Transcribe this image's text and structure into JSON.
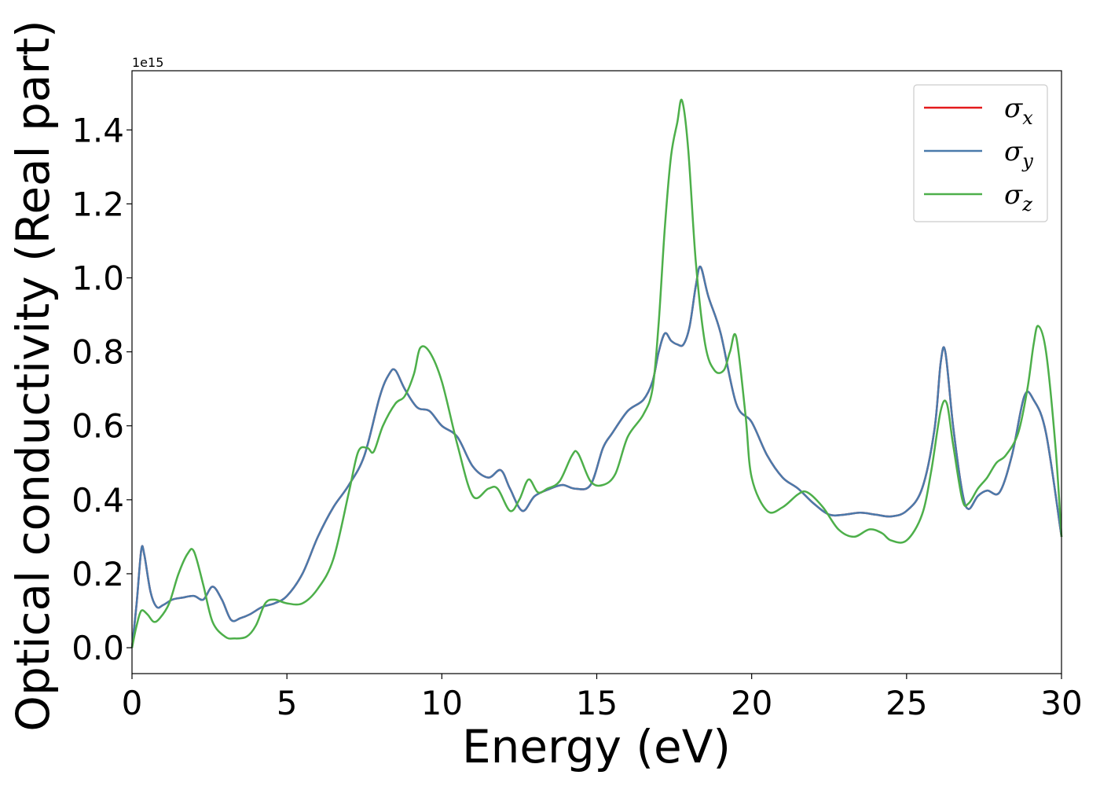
{
  "chart_data": {
    "type": "line",
    "title": "",
    "xlabel": "Energy (eV)",
    "ylabel": "Optical conductivity (Real part)",
    "y_offset_label": "1e15",
    "xlim": [
      0,
      30
    ],
    "ylim": [
      -0.07,
      1.56
    ],
    "x_ticks": [
      0,
      5,
      10,
      15,
      20,
      25,
      30
    ],
    "x_tick_labels": [
      "0",
      "5",
      "10",
      "15",
      "20",
      "25",
      "30"
    ],
    "y_ticks": [
      0.0,
      0.2,
      0.4,
      0.6,
      0.8,
      1.0,
      1.2,
      1.4
    ],
    "y_tick_labels": [
      "0.0",
      "0.2",
      "0.4",
      "0.6",
      "0.8",
      "1.0",
      "1.2",
      "1.4"
    ],
    "grid": false,
    "legend_position": "top-right",
    "series": [
      {
        "name": "σ",
        "subscript": "x",
        "color": "#e41a1c",
        "x": [
          0,
          0.15,
          0.3,
          0.4,
          0.6,
          0.8,
          1.0,
          1.3,
          1.6,
          2.0,
          2.3,
          2.6,
          2.9,
          3.2,
          3.5,
          3.8,
          4.2,
          4.6,
          5.0,
          5.5,
          6.0,
          6.5,
          7.0,
          7.5,
          8.0,
          8.3,
          8.5,
          8.8,
          9.2,
          9.6,
          10.0,
          10.5,
          11.0,
          11.5,
          11.9,
          12.2,
          12.6,
          13.0,
          13.5,
          13.9,
          14.3,
          14.8,
          15.2,
          15.5,
          16.0,
          16.5,
          16.8,
          17.0,
          17.2,
          17.4,
          17.6,
          17.8,
          18.0,
          18.2,
          18.35,
          18.6,
          19.0,
          19.5,
          20.0,
          20.5,
          21.0,
          21.5,
          22.0,
          22.5,
          23.0,
          23.5,
          24.0,
          24.5,
          25.0,
          25.5,
          25.9,
          26.1,
          26.25,
          26.5,
          26.8,
          27.0,
          27.3,
          27.6,
          28.0,
          28.4,
          28.8,
          29.1,
          29.5,
          30.0
        ],
        "values": [
          0.0,
          0.12,
          0.265,
          0.25,
          0.15,
          0.11,
          0.115,
          0.13,
          0.135,
          0.14,
          0.13,
          0.165,
          0.13,
          0.075,
          0.08,
          0.09,
          0.11,
          0.12,
          0.14,
          0.2,
          0.3,
          0.38,
          0.44,
          0.52,
          0.68,
          0.74,
          0.75,
          0.7,
          0.65,
          0.64,
          0.6,
          0.57,
          0.49,
          0.46,
          0.48,
          0.43,
          0.37,
          0.41,
          0.43,
          0.44,
          0.43,
          0.44,
          0.54,
          0.58,
          0.64,
          0.67,
          0.72,
          0.8,
          0.85,
          0.83,
          0.82,
          0.82,
          0.87,
          0.98,
          1.03,
          0.95,
          0.85,
          0.66,
          0.61,
          0.52,
          0.46,
          0.43,
          0.39,
          0.36,
          0.36,
          0.365,
          0.36,
          0.355,
          0.37,
          0.43,
          0.59,
          0.77,
          0.8,
          0.6,
          0.42,
          0.375,
          0.41,
          0.425,
          0.42,
          0.52,
          0.68,
          0.67,
          0.58,
          0.3
        ]
      },
      {
        "name": "σ",
        "subscript": "y",
        "color": "#4a7aab",
        "x": [
          0,
          0.15,
          0.3,
          0.4,
          0.6,
          0.8,
          1.0,
          1.3,
          1.6,
          2.0,
          2.3,
          2.6,
          2.9,
          3.2,
          3.5,
          3.8,
          4.2,
          4.6,
          5.0,
          5.5,
          6.0,
          6.5,
          7.0,
          7.5,
          8.0,
          8.3,
          8.5,
          8.8,
          9.2,
          9.6,
          10.0,
          10.5,
          11.0,
          11.5,
          11.9,
          12.2,
          12.6,
          13.0,
          13.5,
          13.9,
          14.3,
          14.8,
          15.2,
          15.5,
          16.0,
          16.5,
          16.8,
          17.0,
          17.2,
          17.4,
          17.6,
          17.8,
          18.0,
          18.2,
          18.35,
          18.6,
          19.0,
          19.5,
          20.0,
          20.5,
          21.0,
          21.5,
          22.0,
          22.5,
          23.0,
          23.5,
          24.0,
          24.5,
          25.0,
          25.5,
          25.9,
          26.1,
          26.25,
          26.5,
          26.8,
          27.0,
          27.3,
          27.6,
          28.0,
          28.4,
          28.8,
          29.1,
          29.5,
          30.0
        ],
        "values": [
          0.0,
          0.12,
          0.265,
          0.25,
          0.15,
          0.11,
          0.115,
          0.13,
          0.135,
          0.14,
          0.13,
          0.165,
          0.13,
          0.075,
          0.08,
          0.09,
          0.11,
          0.12,
          0.14,
          0.2,
          0.3,
          0.38,
          0.44,
          0.52,
          0.68,
          0.74,
          0.75,
          0.7,
          0.65,
          0.64,
          0.6,
          0.57,
          0.49,
          0.46,
          0.48,
          0.43,
          0.37,
          0.41,
          0.43,
          0.44,
          0.43,
          0.44,
          0.54,
          0.58,
          0.64,
          0.67,
          0.72,
          0.8,
          0.85,
          0.83,
          0.82,
          0.82,
          0.87,
          0.98,
          1.03,
          0.95,
          0.85,
          0.66,
          0.61,
          0.52,
          0.46,
          0.43,
          0.39,
          0.36,
          0.36,
          0.365,
          0.36,
          0.355,
          0.37,
          0.43,
          0.59,
          0.77,
          0.8,
          0.6,
          0.42,
          0.375,
          0.41,
          0.425,
          0.42,
          0.52,
          0.68,
          0.67,
          0.58,
          0.3
        ]
      },
      {
        "name": "σ",
        "subscript": "z",
        "color": "#4daf4a",
        "x": [
          0,
          0.15,
          0.3,
          0.5,
          0.7,
          0.9,
          1.2,
          1.5,
          1.8,
          2.0,
          2.3,
          2.6,
          3.0,
          3.3,
          3.7,
          4.0,
          4.3,
          4.6,
          5.0,
          5.5,
          6.0,
          6.5,
          7.0,
          7.3,
          7.6,
          7.8,
          8.1,
          8.5,
          8.8,
          9.1,
          9.3,
          9.6,
          10.0,
          10.5,
          11.0,
          11.5,
          11.8,
          12.2,
          12.5,
          12.8,
          13.1,
          13.4,
          13.8,
          14.2,
          14.4,
          14.8,
          15.2,
          15.6,
          16.0,
          16.5,
          16.8,
          17.0,
          17.2,
          17.4,
          17.6,
          17.75,
          17.95,
          18.2,
          18.5,
          18.8,
          19.1,
          19.3,
          19.5,
          19.8,
          20.0,
          20.5,
          21.0,
          21.5,
          21.8,
          22.3,
          22.8,
          23.3,
          23.8,
          24.2,
          24.5,
          25.0,
          25.5,
          25.8,
          26.1,
          26.3,
          26.5,
          26.8,
          27.0,
          27.3,
          27.6,
          27.9,
          28.2,
          28.6,
          28.9,
          29.1,
          29.25,
          29.5,
          29.8,
          30.0
        ],
        "values": [
          0.0,
          0.06,
          0.1,
          0.09,
          0.07,
          0.08,
          0.12,
          0.2,
          0.255,
          0.26,
          0.17,
          0.07,
          0.03,
          0.025,
          0.03,
          0.06,
          0.12,
          0.13,
          0.12,
          0.12,
          0.16,
          0.24,
          0.42,
          0.53,
          0.54,
          0.53,
          0.6,
          0.66,
          0.68,
          0.74,
          0.81,
          0.8,
          0.72,
          0.55,
          0.41,
          0.43,
          0.43,
          0.37,
          0.4,
          0.455,
          0.42,
          0.43,
          0.45,
          0.52,
          0.525,
          0.45,
          0.44,
          0.47,
          0.57,
          0.63,
          0.7,
          0.88,
          1.14,
          1.33,
          1.42,
          1.48,
          1.35,
          1.04,
          0.82,
          0.75,
          0.75,
          0.8,
          0.84,
          0.63,
          0.46,
          0.37,
          0.38,
          0.415,
          0.42,
          0.38,
          0.32,
          0.3,
          0.32,
          0.31,
          0.29,
          0.29,
          0.36,
          0.48,
          0.64,
          0.66,
          0.55,
          0.4,
          0.39,
          0.43,
          0.46,
          0.5,
          0.52,
          0.58,
          0.7,
          0.82,
          0.87,
          0.8,
          0.55,
          0.3
        ]
      }
    ]
  }
}
